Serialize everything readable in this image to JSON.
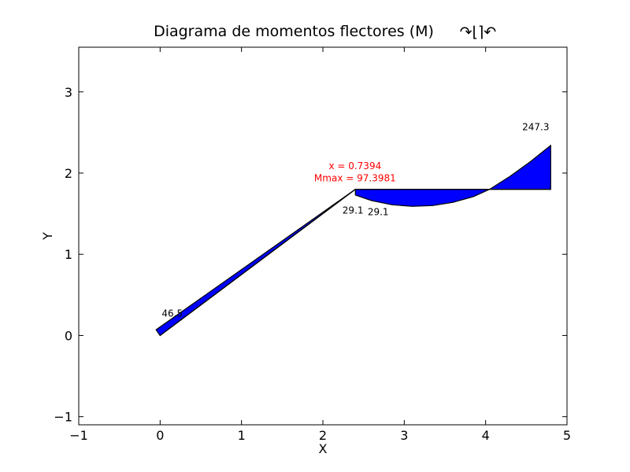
{
  "chart_data": {
    "type": "area",
    "title": "Diagrama de momentos flectores (M)",
    "title_symbol": "↷⌊⌉↶",
    "xlabel": "X",
    "ylabel": "Y",
    "xlim": [
      -1,
      5
    ],
    "ylim": [
      -1.1,
      3.55
    ],
    "xticks": [
      -1,
      0,
      1,
      2,
      3,
      4,
      5
    ],
    "xtick_labels": [
      "−1",
      "0",
      "1",
      "2",
      "3",
      "4",
      "5"
    ],
    "yticks": [
      -1,
      0,
      1,
      2,
      3
    ],
    "ytick_labels": [
      "−1",
      "0",
      "1",
      "2",
      "3"
    ],
    "grid": false,
    "fill_color": "#0000ff",
    "edge_color": "#000000",
    "annotation_color": "#ff0000",
    "series": [
      {
        "beam": [
          [
            0,
            0
          ],
          [
            2.4,
            1.8
          ]
        ],
        "outline": [
          [
            0,
            0
          ],
          [
            -0.05,
            0.07
          ],
          [
            2.4,
            1.8
          ],
          [
            2.42,
            1.75
          ],
          [
            2.4,
            1.8
          ],
          [
            0,
            0
          ]
        ]
      },
      {
        "beam": [
          [
            2.4,
            1.8
          ],
          [
            4.8,
            1.8
          ]
        ],
        "outline": [
          [
            2.4,
            1.8
          ],
          [
            2.4,
            1.73
          ],
          [
            2.6,
            1.66
          ],
          [
            2.85,
            1.61
          ],
          [
            3.1,
            1.59
          ],
          [
            3.35,
            1.6
          ],
          [
            3.6,
            1.64
          ],
          [
            3.85,
            1.71
          ],
          [
            4.05,
            1.8
          ],
          [
            4.3,
            1.96
          ],
          [
            4.55,
            2.14
          ],
          [
            4.8,
            2.34
          ],
          [
            4.8,
            1.8
          ],
          [
            2.4,
            1.8
          ]
        ]
      }
    ],
    "data_labels": [
      {
        "text": "46.5",
        "x": 0.02,
        "y": 0.23
      },
      {
        "text": "29.1",
        "x": 2.24,
        "y": 1.5
      },
      {
        "text": "29.1",
        "x": 2.55,
        "y": 1.48
      },
      {
        "text": "247.3",
        "x": 4.45,
        "y": 2.53
      }
    ],
    "annotations": [
      {
        "text": "x = 0.7394",
        "x": 3.75,
        "y": 2.05
      },
      {
        "text": "Mmax = 97.3981",
        "x": 3.75,
        "y": 1.9
      }
    ]
  }
}
